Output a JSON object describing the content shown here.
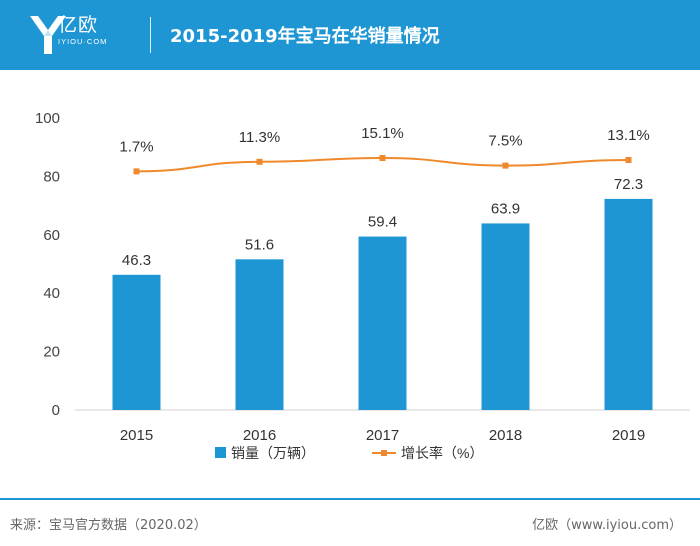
{
  "header": {
    "logo_text": "亿欧",
    "logo_sub": "IYIOU·COM",
    "title": "2015-2019年宝马在华销量情况"
  },
  "chart_data": {
    "type": "bar",
    "title": "2015-2019年宝马在华销量情况",
    "categories": [
      "2015",
      "2016",
      "2017",
      "2018",
      "2019"
    ],
    "series": [
      {
        "name": "销量（万辆）",
        "type": "bar",
        "values": [
          46.3,
          51.6,
          59.4,
          63.9,
          72.3
        ],
        "labels": [
          "46.3",
          "51.6",
          "59.4",
          "63.9",
          "72.3"
        ]
      },
      {
        "name": "增长率（%）",
        "type": "line",
        "values": [
          1.7,
          11.3,
          15.1,
          7.5,
          13.1
        ],
        "labels": [
          "1.7%",
          "11.3%",
          "15.1%",
          "7.5%",
          "13.1%"
        ]
      }
    ],
    "ylim": [
      0,
      100
    ],
    "yticks": [
      "0",
      "20",
      "40",
      "60",
      "80",
      "100"
    ],
    "legend_position": "bottom",
    "colors": {
      "bar": "#1e96d3",
      "line": "#f0892b"
    }
  },
  "footer": {
    "source": "来源：宝马官方数据（2020.02）",
    "brand": "亿欧（www.iyiou.com）"
  }
}
